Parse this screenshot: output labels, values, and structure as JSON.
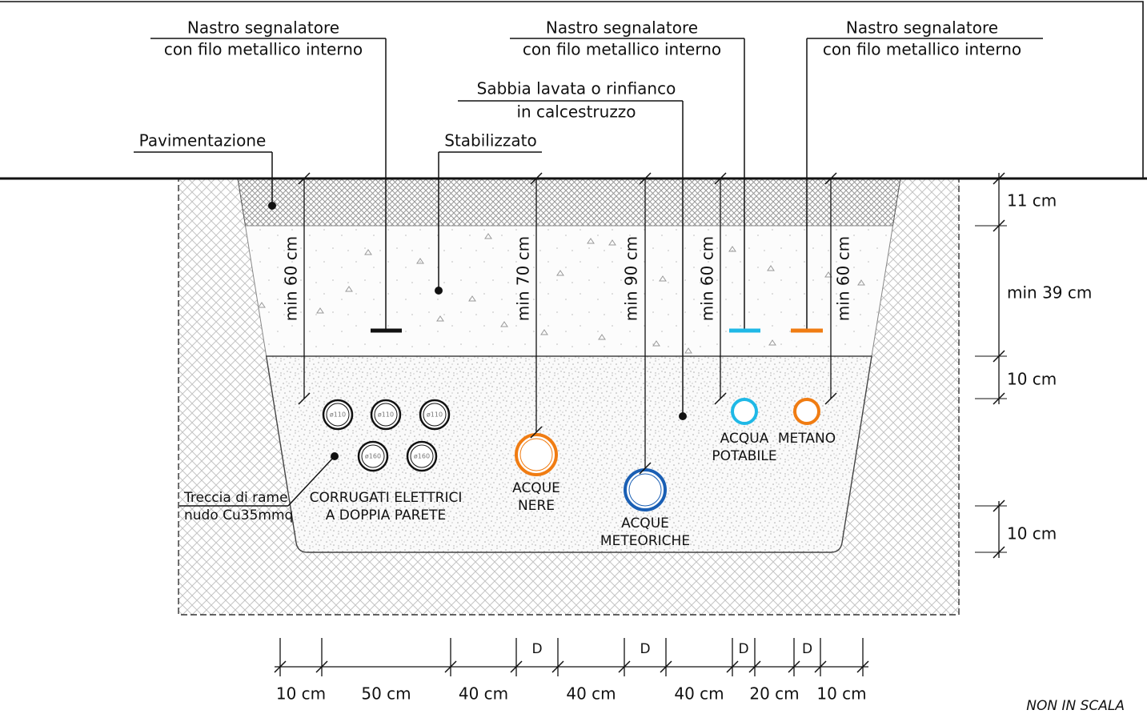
{
  "leaders": [
    {
      "lines": [
        "Nastro segnalatore",
        "con filo metallico interno"
      ]
    },
    {
      "lines": [
        "Nastro segnalatore",
        "con filo metallico interno"
      ]
    },
    {
      "lines": [
        "Nastro segnalatore",
        "con filo metallico interno"
      ]
    },
    {
      "lines": [
        "Sabbia lavata o rinfianco",
        "in calcestruzzo"
      ]
    },
    {
      "lines": [
        "Stabilizzato"
      ]
    },
    {
      "lines": [
        "Pavimentazione"
      ]
    },
    {
      "lines": [
        "Treccia di rame",
        "nudo Cu35mmq"
      ]
    }
  ],
  "pipe_sizes": [
    "ø110",
    "ø110",
    "ø110",
    "ø160",
    "ø160"
  ],
  "pipe_labels": [
    {
      "lines": [
        "CORRUGATI ELETTRICI",
        "A DOPPIA PARETE"
      ]
    },
    {
      "lines": [
        "ACQUE",
        "NERE"
      ]
    },
    {
      "lines": [
        "ACQUE",
        "METEORICHE"
      ]
    },
    {
      "lines": [
        "ACQUA",
        "POTABILE"
      ]
    },
    {
      "lines": [
        "METANO"
      ]
    }
  ],
  "depths": [
    "min 60 cm",
    "min 70 cm",
    "min 90 cm",
    "min 60 cm",
    "min 60 cm"
  ],
  "layers": [
    "11 cm",
    "min 39 cm",
    "10 cm",
    "10 cm"
  ],
  "spacings": [
    "10 cm",
    "50 cm",
    "40 cm",
    "40 cm",
    "40 cm",
    "20 cm",
    "10 cm"
  ],
  "diameter_marks": [
    "D",
    "D",
    "D",
    "D"
  ],
  "note": "NON IN SCALA"
}
